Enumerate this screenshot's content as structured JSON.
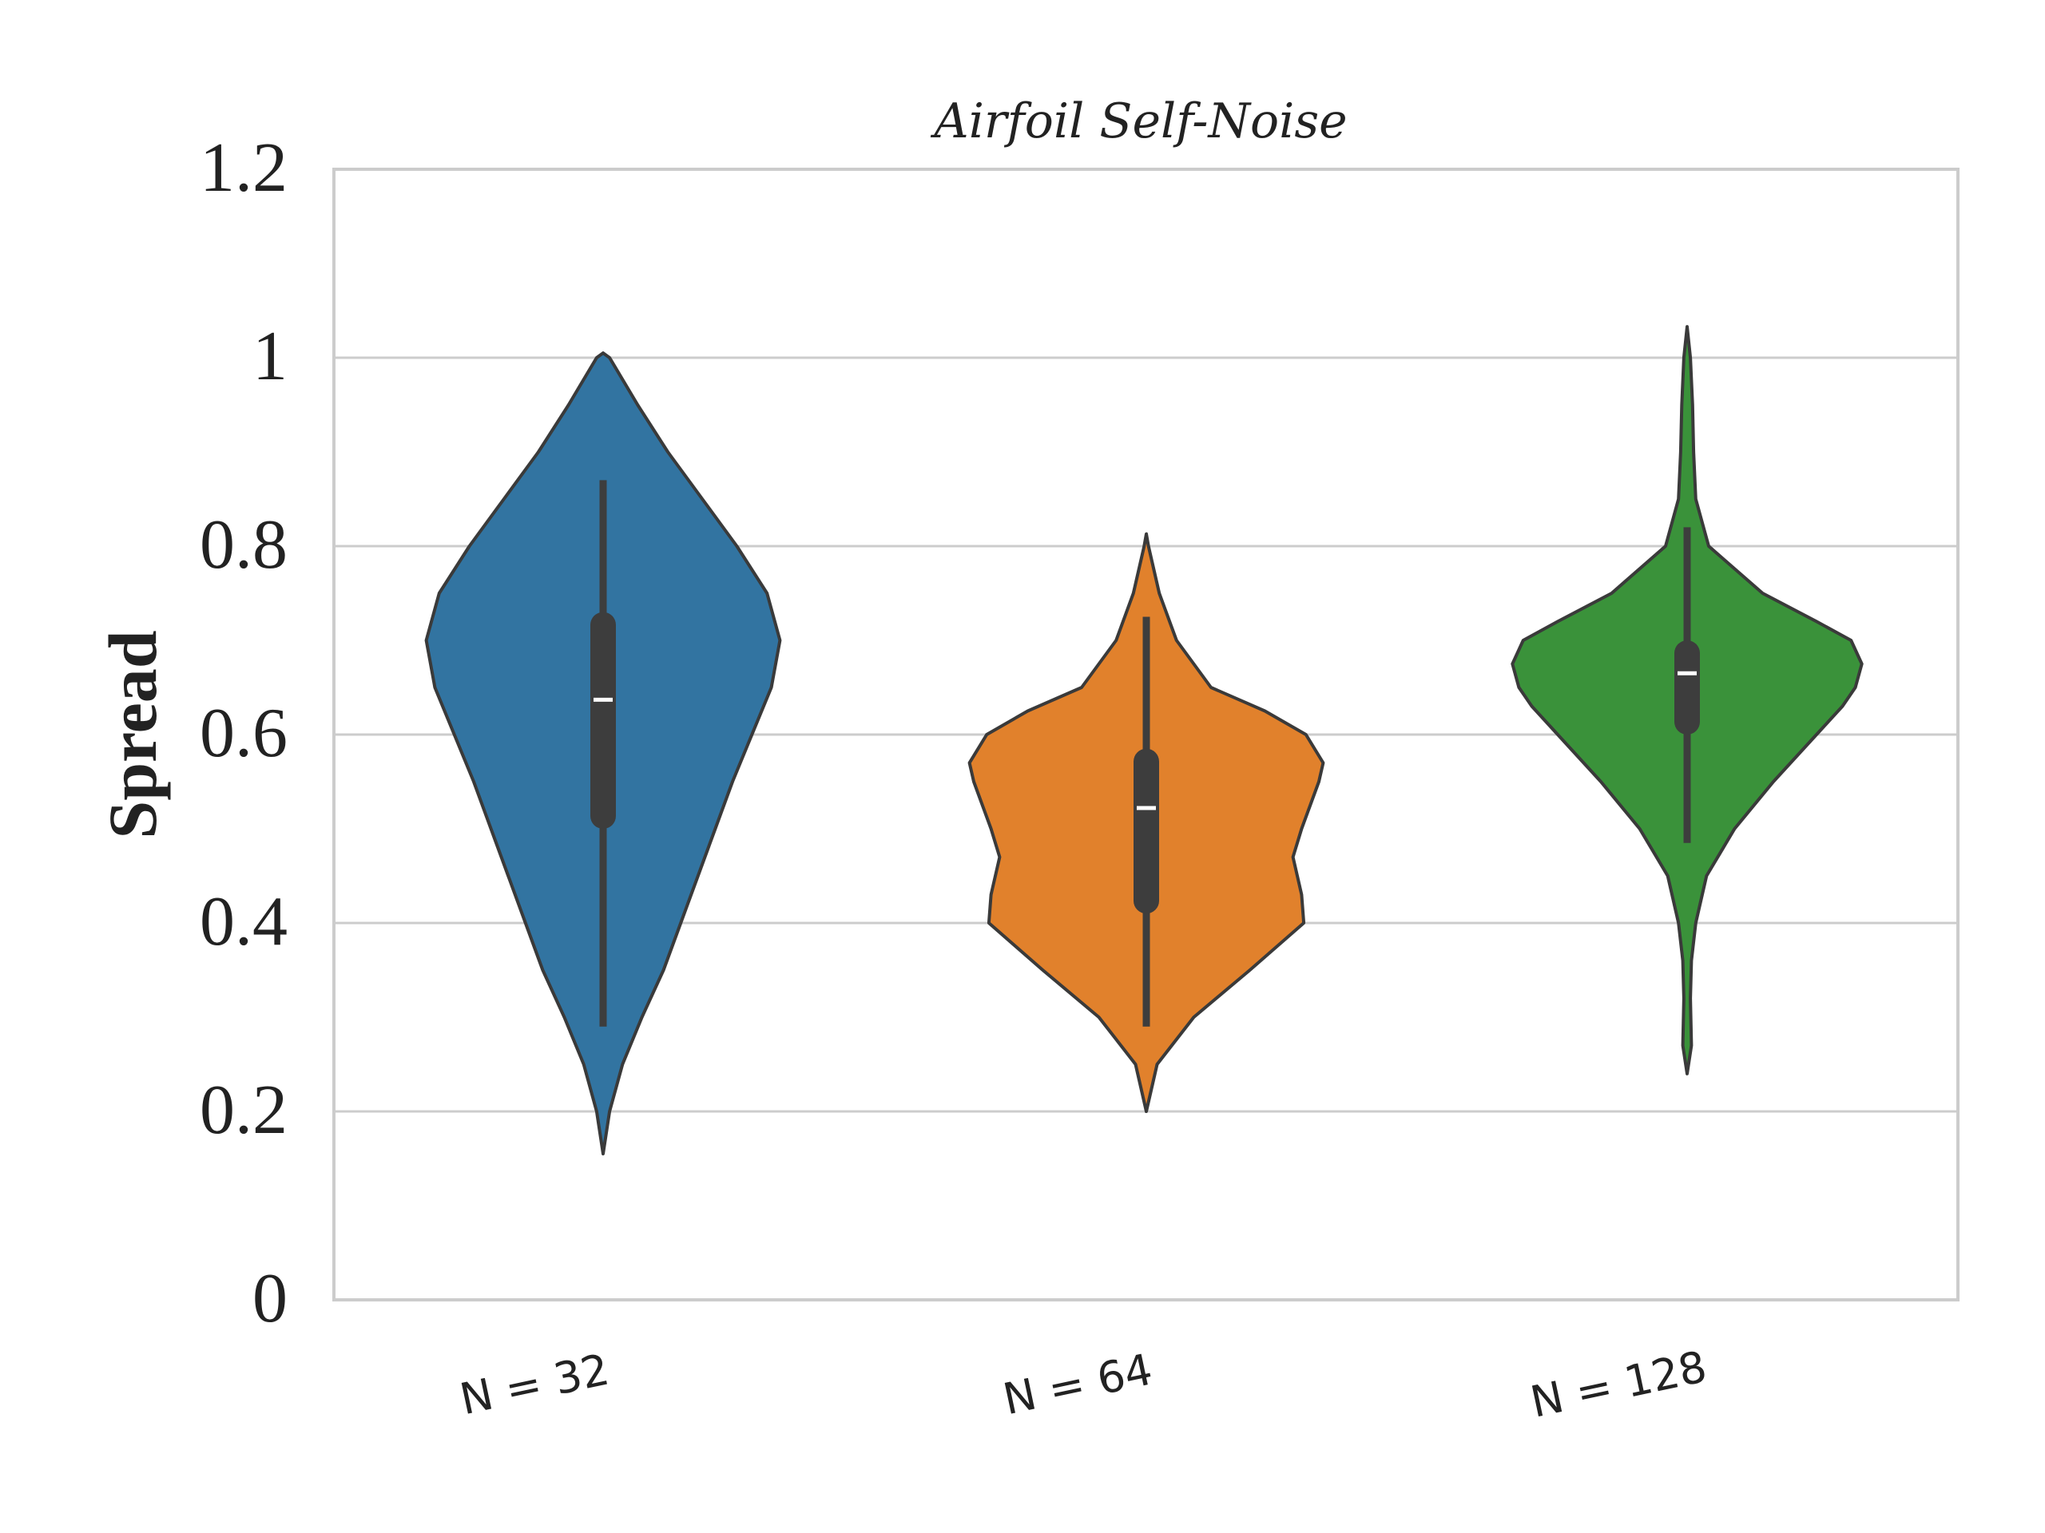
{
  "chart_data": {
    "type": "violin",
    "title": "Airfoil Self-Noise",
    "xlabel": "",
    "ylabel": "Spread",
    "ylim": [
      0,
      1.2
    ],
    "yticks": [
      "0",
      "0.2",
      "0.4",
      "0.6",
      "0.8",
      "1",
      "1.2"
    ],
    "grid": "horizontal",
    "categories": [
      "N = 32",
      "N = 64",
      "N = 128"
    ],
    "violins": [
      {
        "category": "N = 32",
        "color": "#3274a1",
        "min": 0.155,
        "max": 1.005,
        "whisker_low": 0.29,
        "whisker_high": 0.87,
        "q1": 0.5,
        "q3": 0.73,
        "median": 0.637,
        "profile": [
          [
            0.155,
            0.0
          ],
          [
            0.2,
            0.03
          ],
          [
            0.25,
            0.09
          ],
          [
            0.3,
            0.18
          ],
          [
            0.35,
            0.28
          ],
          [
            0.4,
            0.36
          ],
          [
            0.45,
            0.44
          ],
          [
            0.5,
            0.52
          ],
          [
            0.55,
            0.6
          ],
          [
            0.6,
            0.69
          ],
          [
            0.65,
            0.78
          ],
          [
            0.7,
            0.82
          ],
          [
            0.75,
            0.76
          ],
          [
            0.8,
            0.62
          ],
          [
            0.85,
            0.46
          ],
          [
            0.9,
            0.3
          ],
          [
            0.95,
            0.16
          ],
          [
            1.0,
            0.03
          ],
          [
            1.005,
            0.0
          ]
        ]
      },
      {
        "category": "N = 64",
        "color": "#e1812c",
        "min": 0.2,
        "max": 0.813,
        "whisker_low": 0.29,
        "whisker_high": 0.725,
        "q1": 0.41,
        "q3": 0.585,
        "median": 0.522,
        "profile": [
          [
            0.2,
            0.0
          ],
          [
            0.25,
            0.05
          ],
          [
            0.3,
            0.22
          ],
          [
            0.35,
            0.48
          ],
          [
            0.4,
            0.73
          ],
          [
            0.43,
            0.72
          ],
          [
            0.47,
            0.68
          ],
          [
            0.5,
            0.72
          ],
          [
            0.55,
            0.8
          ],
          [
            0.57,
            0.82
          ],
          [
            0.6,
            0.74
          ],
          [
            0.625,
            0.55
          ],
          [
            0.65,
            0.3
          ],
          [
            0.7,
            0.14
          ],
          [
            0.75,
            0.06
          ],
          [
            0.8,
            0.01
          ],
          [
            0.813,
            0.0
          ]
        ]
      },
      {
        "category": "N = 128",
        "color": "#3a923a",
        "min": 0.24,
        "max": 1.033,
        "whisker_low": 0.485,
        "whisker_high": 0.82,
        "q1": 0.6,
        "q3": 0.7,
        "median": 0.665,
        "profile": [
          [
            0.24,
            0.0
          ],
          [
            0.27,
            0.02
          ],
          [
            0.32,
            0.015
          ],
          [
            0.36,
            0.02
          ],
          [
            0.4,
            0.04
          ],
          [
            0.45,
            0.09
          ],
          [
            0.5,
            0.22
          ],
          [
            0.55,
            0.4
          ],
          [
            0.6,
            0.6
          ],
          [
            0.63,
            0.72
          ],
          [
            0.65,
            0.78
          ],
          [
            0.675,
            0.81
          ],
          [
            0.7,
            0.76
          ],
          [
            0.72,
            0.6
          ],
          [
            0.75,
            0.35
          ],
          [
            0.8,
            0.1
          ],
          [
            0.85,
            0.04
          ],
          [
            0.9,
            0.03
          ],
          [
            0.95,
            0.025
          ],
          [
            1.0,
            0.015
          ],
          [
            1.033,
            0.0
          ]
        ]
      }
    ]
  }
}
